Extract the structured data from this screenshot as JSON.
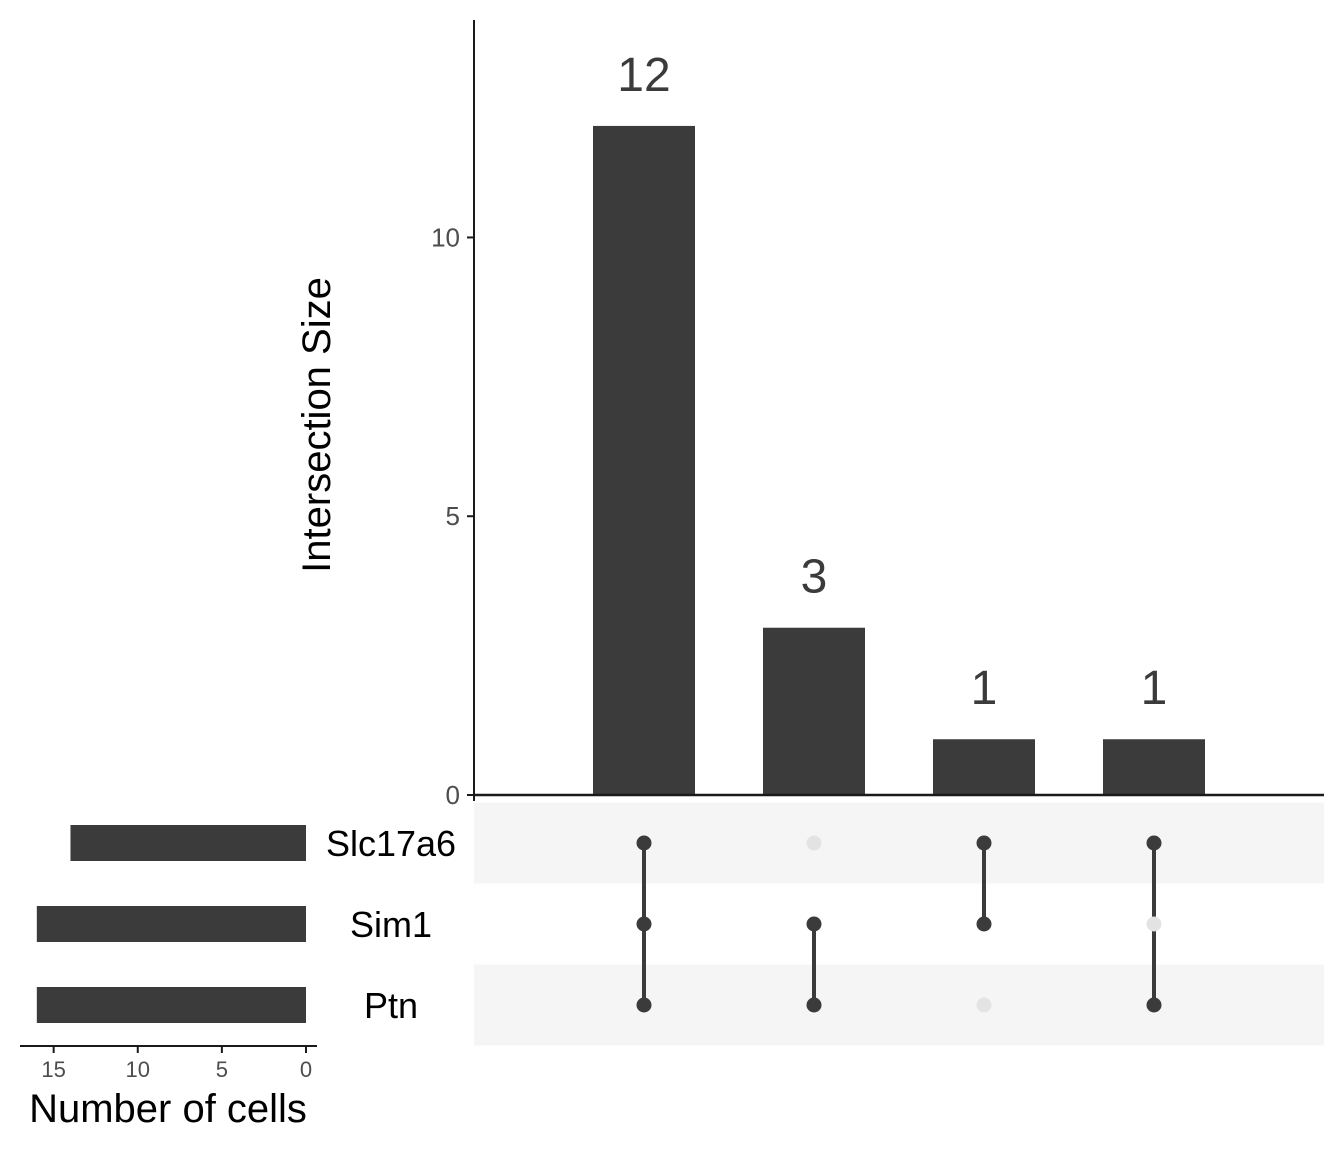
{
  "chart_data": {
    "type": "bar",
    "subtype": "upset",
    "intersections": {
      "ylabel": "Intersection Size",
      "ylim": [
        0,
        13.9
      ],
      "yticks": [
        "0",
        "5",
        "10"
      ],
      "yticks_values": [
        0,
        5,
        10
      ],
      "values": [
        12,
        3,
        1,
        1
      ],
      "value_labels": [
        "12",
        "3",
        "1",
        "1"
      ],
      "membership": [
        [
          "Slc17a6",
          "Sim1",
          "Ptn"
        ],
        [
          "Sim1",
          "Ptn"
        ],
        [
          "Slc17a6",
          "Sim1"
        ],
        [
          "Slc17a6",
          "Ptn"
        ]
      ]
    },
    "sets": {
      "names": [
        "Slc17a6",
        "Sim1",
        "Ptn"
      ],
      "sizes": [
        14,
        16,
        16
      ],
      "xlabel": "Number of cells",
      "xlim": [
        0,
        17
      ],
      "xticks": [
        "15",
        "10",
        "5",
        "0"
      ],
      "xticks_values": [
        15,
        10,
        5,
        0
      ]
    },
    "colors": {
      "bar": "#3b3b3b",
      "dot_on": "#3b3b3b",
      "dot_off": "#e3e3e3",
      "stripe": "#f5f5f5",
      "axis": "#1a1a1a",
      "tick_text": "#4d4d4d",
      "label_text": "#000000"
    }
  }
}
